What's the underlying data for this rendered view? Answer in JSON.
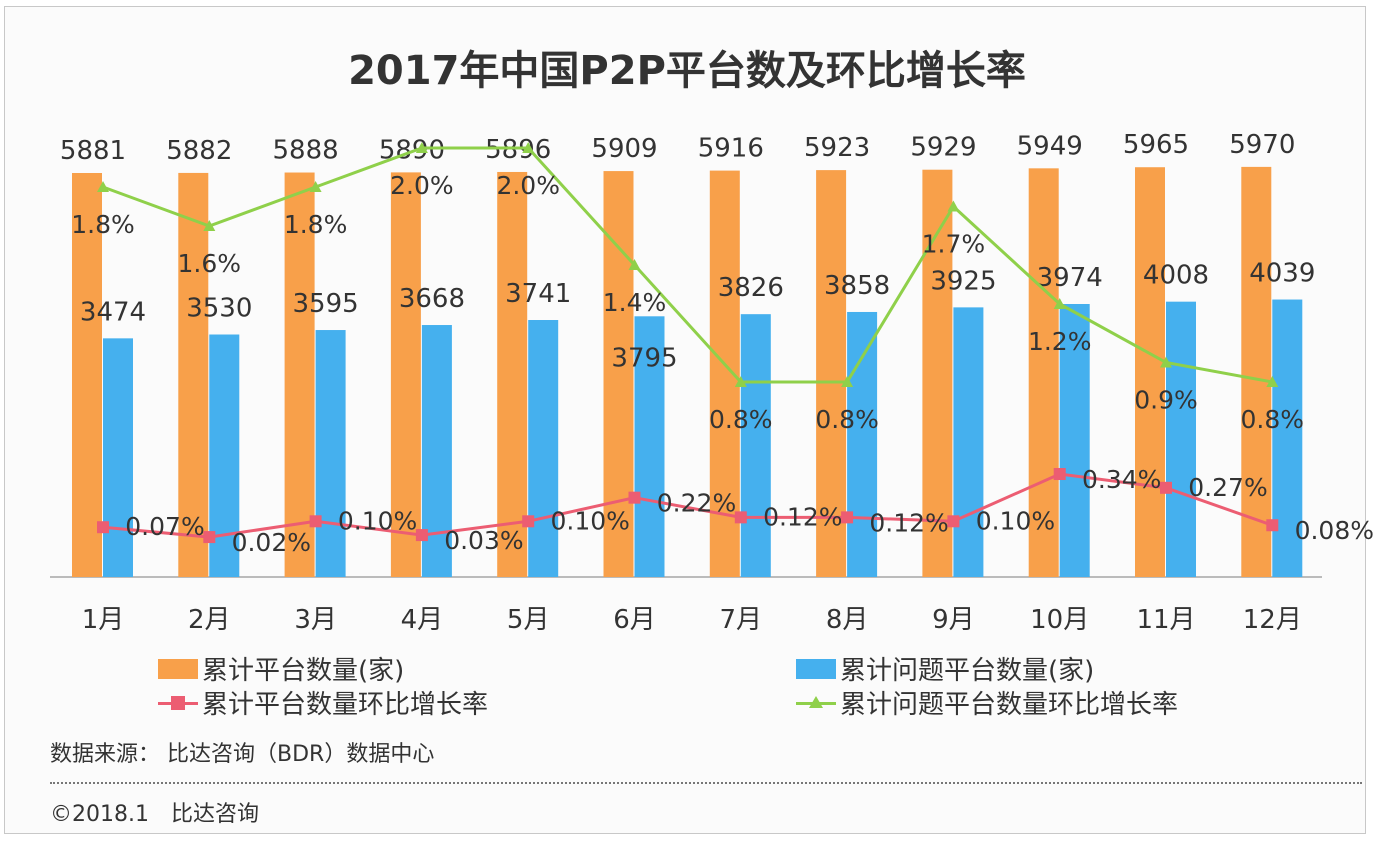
{
  "chart_data": {
    "type": "bar",
    "title": "2017年中国P2P平台数及环比增长率",
    "categories": [
      "1月",
      "2月",
      "3月",
      "4月",
      "5月",
      "6月",
      "7月",
      "8月",
      "9月",
      "10月",
      "11月",
      "12月"
    ],
    "series": [
      {
        "name": "累计平台数量(家)",
        "kind": "bar",
        "color": "#f8a04a",
        "values": [
          5881,
          5882,
          5888,
          5890,
          5896,
          5909,
          5916,
          5923,
          5929,
          5949,
          5965,
          5970
        ]
      },
      {
        "name": "累计问题平台数量(家)",
        "kind": "bar",
        "color": "#45b0ee",
        "values": [
          3474,
          3530,
          3595,
          3668,
          3741,
          3795,
          3826,
          3858,
          3925,
          3974,
          4008,
          4039
        ]
      },
      {
        "name": "累计平台数量环比增长率",
        "kind": "line",
        "marker": "square",
        "color": "#ec5d72",
        "unit": "%",
        "values": [
          0.07,
          0.02,
          0.1,
          0.03,
          0.1,
          0.22,
          0.12,
          0.12,
          0.1,
          0.34,
          0.27,
          0.08
        ],
        "labels": [
          "0.07%",
          "0.02%",
          "0.10%",
          "0.03%",
          "0.10%",
          "0.22%",
          "0.12%",
          "0.12%",
          "0.10%",
          "0.34%",
          "0.27%",
          "0.08%"
        ]
      },
      {
        "name": "累计问题平台数量环比增长率",
        "kind": "line",
        "marker": "triangle",
        "color": "#8fd04a",
        "unit": "%",
        "values": [
          1.8,
          1.6,
          1.8,
          2.0,
          2.0,
          1.4,
          0.8,
          0.8,
          1.7,
          1.2,
          0.9,
          0.8
        ],
        "labels": [
          "1.8%",
          "1.6%",
          "1.8%",
          "2.0%",
          "2.0%",
          "1.4%",
          "0.8%",
          "0.8%",
          "1.7%",
          "1.2%",
          "0.9%",
          "0.8%"
        ]
      }
    ],
    "grid": false,
    "axes_visible": false,
    "legend_placement": "bottom"
  },
  "source": "数据来源： 比达咨询（BDR）数据中心",
  "copyright": "©2018.1　比达咨询"
}
